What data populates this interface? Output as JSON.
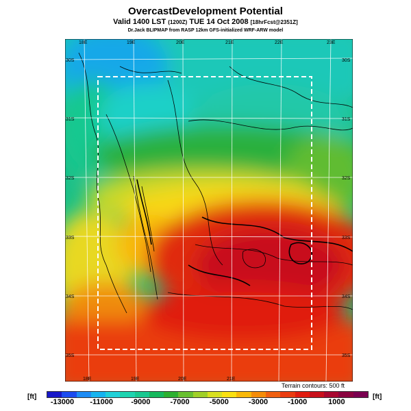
{
  "header": {
    "title": "OvercastDevelopment Potential",
    "valid_main": "Valid 1400 LST",
    "valid_utc": "(1200Z)",
    "valid_date": "TUE 14 Oct 2008",
    "valid_forecast": "[18hrFcst@2351Z]",
    "credit": "Dr.Jack BLIPMAP from RASP 12km GFS-initialized WRF-ARW model"
  },
  "map": {
    "lon_labels_top": [
      "18E",
      "19E",
      "20E",
      "21E",
      "22E",
      "23E"
    ],
    "lon_labels_bottom": [
      "18E",
      "19E",
      "20E",
      "21E"
    ],
    "lat_labels_left": [
      "30S",
      "31S",
      "32S",
      "33S",
      "34S",
      "35S"
    ],
    "lat_labels_right": [
      "30S",
      "31S",
      "32S",
      "33S",
      "34S",
      "35S"
    ]
  },
  "legend": {
    "terrain_note": "Terrain contours: 500 ft",
    "unit_left": "[ft]",
    "unit_right": "[ft]",
    "tick_labels": [
      "-13000",
      "-11000",
      "-9000",
      "-7000",
      "-5000",
      "-3000",
      "-1000",
      "1000"
    ],
    "colors": [
      "#1818c8",
      "#1c4cf0",
      "#1e8cf5",
      "#16b4f0",
      "#20d0d8",
      "#1ed4b0",
      "#18c890",
      "#16b85c",
      "#2cb030",
      "#68c030",
      "#a0d028",
      "#d8e020",
      "#fae010",
      "#f8b808",
      "#f58c08",
      "#f06010",
      "#ea3c10",
      "#e01c10",
      "#c8101c",
      "#a80830",
      "#8a0440",
      "#7a0050"
    ]
  }
}
